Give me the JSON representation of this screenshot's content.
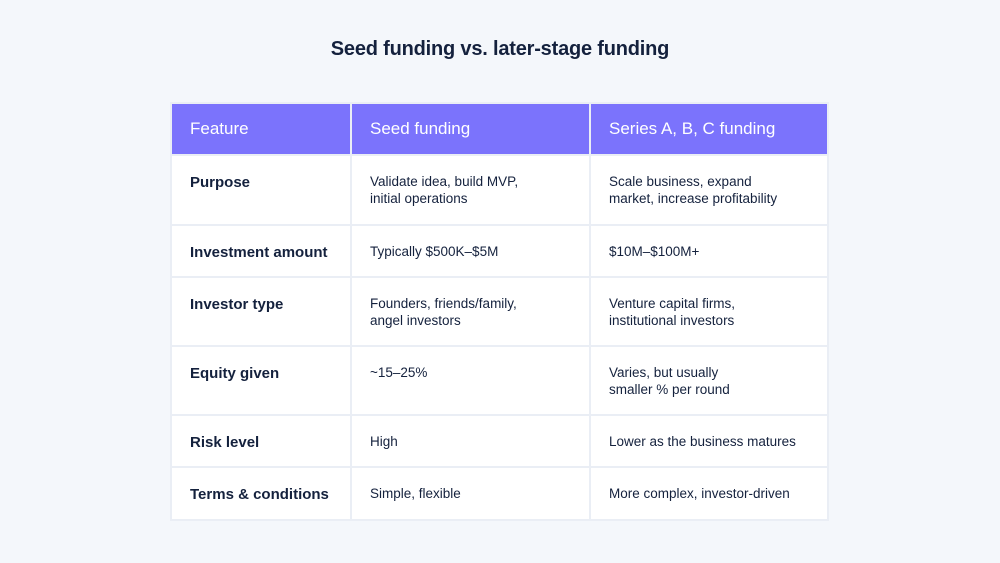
{
  "title": "Seed funding vs. later-stage funding",
  "table": {
    "headers": [
      "Feature",
      "Seed funding",
      "Series A, B, C funding"
    ],
    "rows": [
      [
        "Purpose",
        "Validate idea, build MVP,\ninitial operations",
        "Scale business, expand\nmarket, increase profitability"
      ],
      [
        "Investment amount",
        "Typically $500K–$5M",
        "$10M–$100M+"
      ],
      [
        "Investor type",
        "Founders, friends/family,\nangel investors",
        "Venture capital firms,\ninstitutional investors"
      ],
      [
        "Equity given",
        "~15–25%",
        "Varies, but usually\nsmaller % per round"
      ],
      [
        "Risk level",
        "High",
        "Lower as the business matures"
      ],
      [
        "Terms & conditions",
        "Simple, flexible",
        "More complex, investor-driven"
      ]
    ]
  },
  "colors": {
    "header": "#7b73fc",
    "text": "#14213d",
    "background": "#f4f7fb"
  }
}
